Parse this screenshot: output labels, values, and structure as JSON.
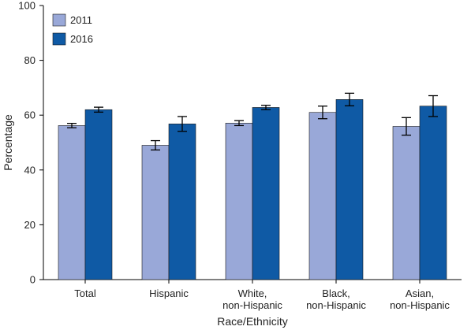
{
  "chart_data": {
    "type": "bar",
    "title": "",
    "xlabel": "Race/Ethnicity",
    "ylabel": "Percentage",
    "ylim": [
      0,
      100
    ],
    "yticks": [
      0,
      20,
      40,
      60,
      80,
      100
    ],
    "grid": false,
    "legend_position": "top-left",
    "categories": [
      [
        "Total"
      ],
      [
        "Hispanic"
      ],
      [
        "White,",
        "non-Hispanic"
      ],
      [
        "Black,",
        "non-Hispanic"
      ],
      [
        "Asian,",
        "non-Hispanic"
      ]
    ],
    "series": [
      {
        "name": "2011",
        "color": "#99a8d8",
        "values": [
          56.2,
          49.0,
          57.1,
          61.0,
          55.9
        ],
        "error_low": [
          55.4,
          47.3,
          56.2,
          58.7,
          52.7
        ],
        "error_high": [
          57.0,
          50.7,
          58.0,
          63.3,
          59.1
        ]
      },
      {
        "name": "2016",
        "color": "#0f5aa5",
        "values": [
          62.0,
          56.8,
          62.8,
          65.7,
          63.3
        ],
        "error_low": [
          61.1,
          54.1,
          62.0,
          63.4,
          59.5
        ],
        "error_high": [
          62.9,
          59.5,
          63.6,
          68.0,
          67.1
        ]
      }
    ]
  }
}
